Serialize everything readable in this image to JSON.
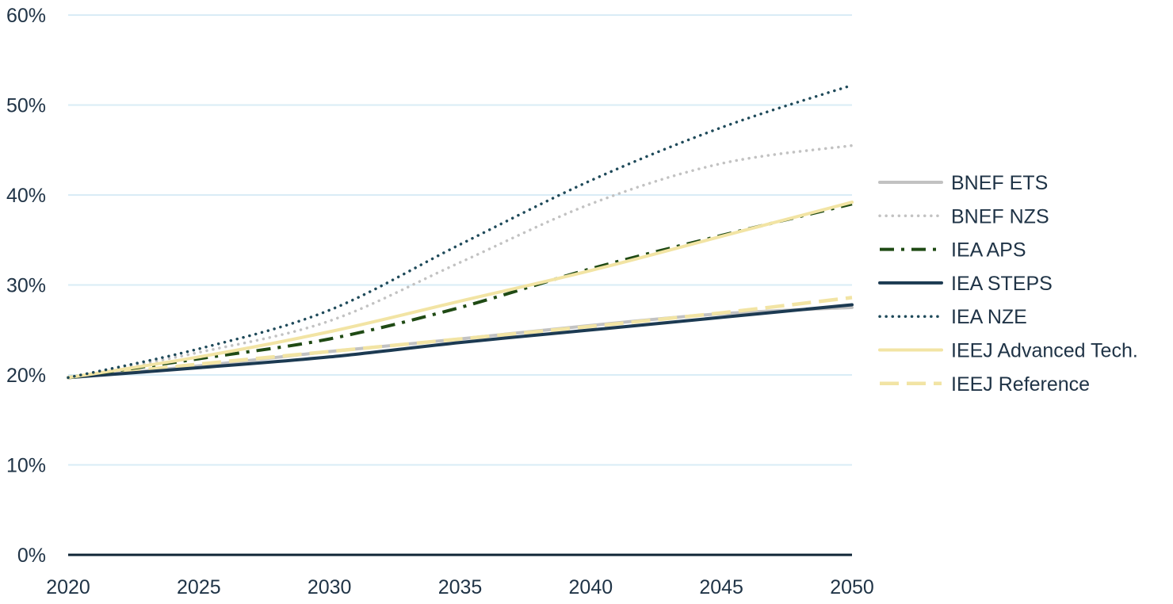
{
  "chart_data": {
    "type": "line",
    "title": "",
    "xlabel": "",
    "ylabel": "",
    "xlim": [
      2020,
      2050
    ],
    "ylim": [
      0,
      60
    ],
    "x_ticks": [
      2020,
      2025,
      2030,
      2035,
      2040,
      2045,
      2050
    ],
    "x_tick_labels": [
      "2020",
      "2025",
      "2030",
      "2035",
      "2040",
      "2045",
      "2050"
    ],
    "y_ticks": [
      0,
      10,
      20,
      30,
      40,
      50,
      60
    ],
    "y_tick_labels": [
      "0%",
      "10%",
      "20%",
      "30%",
      "40%",
      "50%",
      "60%"
    ],
    "grid": "horizontal",
    "legend_position": "right",
    "x": [
      2020,
      2025,
      2030,
      2035,
      2040,
      2045,
      2050
    ],
    "series": [
      {
        "name": "BNEF ETS",
        "color": "#c2c2c2",
        "style": "solid",
        "values": [
          19.7,
          21.0,
          22.6,
          24.0,
          25.5,
          26.8,
          27.5
        ]
      },
      {
        "name": "BNEF NZS",
        "color": "#c2c2c2",
        "style": "dotted",
        "values": [
          19.7,
          22.5,
          26.0,
          32.5,
          39.0,
          43.5,
          45.5
        ]
      },
      {
        "name": "IEA APS",
        "color": "#1f4a14",
        "style": "dashdot",
        "values": [
          19.7,
          21.8,
          24.0,
          27.5,
          31.8,
          35.5,
          39.0
        ]
      },
      {
        "name": "IEA STEPS",
        "color": "#1c3a52",
        "style": "solid",
        "values": [
          19.7,
          20.8,
          22.0,
          23.6,
          25.0,
          26.4,
          27.8
        ]
      },
      {
        "name": "IEA NZE",
        "color": "#1f4a5a",
        "style": "dotted",
        "values": [
          19.7,
          22.9,
          27.2,
          34.5,
          41.6,
          47.5,
          52.2
        ]
      },
      {
        "name": "IEEJ Advanced Tech.",
        "color": "#f2e4a4",
        "style": "solid",
        "values": [
          19.7,
          22.0,
          24.8,
          28.2,
          31.6,
          35.4,
          39.2
        ]
      },
      {
        "name": "IEEJ Reference",
        "color": "#f2e4a4",
        "style": "dashed",
        "values": [
          19.7,
          21.2,
          22.6,
          24.0,
          25.4,
          26.9,
          28.6
        ]
      }
    ]
  }
}
